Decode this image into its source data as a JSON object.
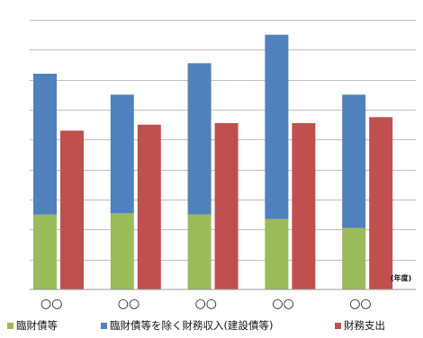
{
  "chart_data": {
    "type": "bar",
    "stacked_series_then_grouped": true,
    "categories": [
      "○○",
      "○○",
      "○○",
      "○○",
      "○○"
    ],
    "x_unit_label": "(年度)",
    "series": [
      {
        "name": "臨財債等",
        "stack": "revenue",
        "color": "#9bbb59",
        "values": [
          2.5,
          2.55,
          2.5,
          2.35,
          2.05
        ]
      },
      {
        "name": "臨財債等を除く財務収入(建設債等)",
        "stack": "revenue",
        "color": "#4f81bd",
        "values": [
          4.7,
          3.95,
          5.05,
          6.15,
          4.45
        ]
      },
      {
        "name": "財務支出",
        "stack": "expenditure",
        "color": "#c0504d",
        "values": [
          5.3,
          5.5,
          5.55,
          5.55,
          5.75
        ]
      }
    ],
    "ylim": [
      0,
      9
    ],
    "grid": true,
    "legend_position": "bottom"
  }
}
